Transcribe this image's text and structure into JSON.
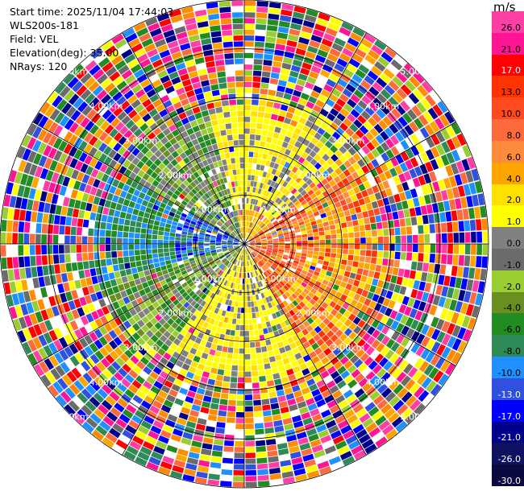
{
  "info": {
    "start_time": "Start time: 2025/11/04 17:44:03",
    "site": "WLS200s-181",
    "field": "Field: VEL",
    "elevation": "Elevation(deg): 35.00",
    "nrays": "NRays: 120"
  },
  "colorbar": {
    "unit": "m/s",
    "levels": [
      {
        "label": "26.0",
        "color": "#ff3fa6"
      },
      {
        "label": "21.0",
        "color": "#ff1493"
      },
      {
        "label": "17.0",
        "color": "#ff0000"
      },
      {
        "label": "13.0",
        "color": "#ff3300"
      },
      {
        "label": "10.0",
        "color": "#ff4a1f"
      },
      {
        "label": "8.0",
        "color": "#ff6a3d"
      },
      {
        "label": "6.0",
        "color": "#ff8c3a"
      },
      {
        "label": "4.0",
        "color": "#ffa500"
      },
      {
        "label": "2.0",
        "color": "#ffe000"
      },
      {
        "label": "1.0",
        "color": "#ffff00"
      },
      {
        "label": "0.0",
        "color": "#808080"
      },
      {
        "label": "-1.0",
        "color": "#6b6b6b"
      },
      {
        "label": "-2.0",
        "color": "#9acd32"
      },
      {
        "label": "-4.0",
        "color": "#6b8e23"
      },
      {
        "label": "-6.0",
        "color": "#228b22"
      },
      {
        "label": "-8.0",
        "color": "#2e8b57"
      },
      {
        "label": "-10.0",
        "color": "#1e90ff"
      },
      {
        "label": "-13.0",
        "color": "#3050e0"
      },
      {
        "label": "-17.0",
        "color": "#0000ff"
      },
      {
        "label": "-21.0",
        "color": "#00008b"
      },
      {
        "label": "-26.0",
        "color": "#101060"
      },
      {
        "label": "-30.0",
        "color": "#0a0a40"
      }
    ]
  },
  "map": {
    "range_rings": [
      "1.00km",
      "2.00km",
      "3.00km",
      "4.00km",
      "5.00km"
    ],
    "max_range_km": 5.0,
    "nrays": 120
  }
}
